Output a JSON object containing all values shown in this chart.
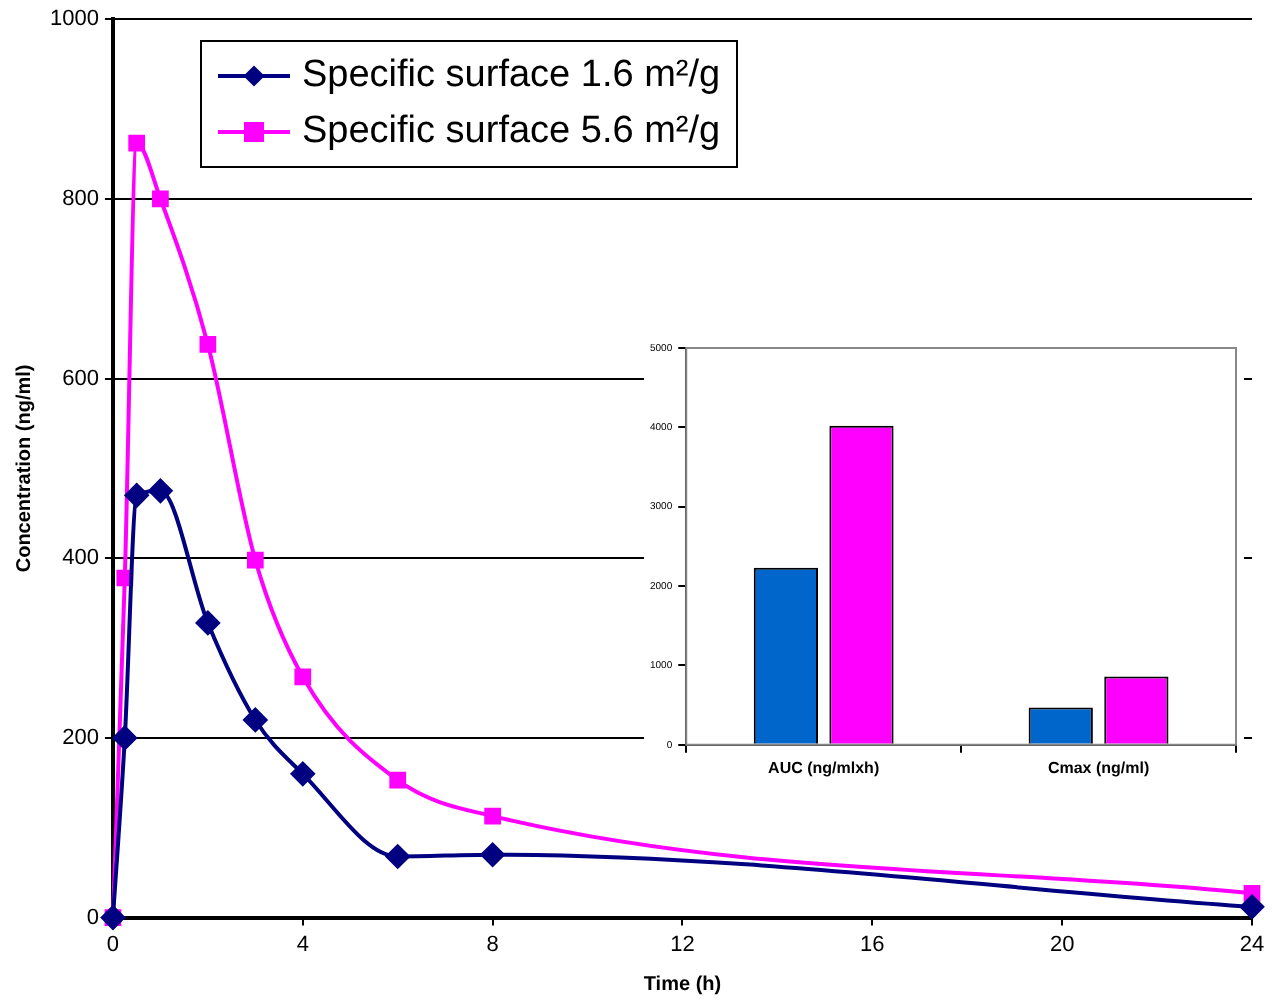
{
  "chart_data": [
    {
      "type": "line",
      "xlabel": "Time (h)",
      "ylabel": "Concentration (ng/ml)",
      "x": [
        0,
        0.25,
        0.5,
        1,
        2,
        3,
        4,
        6,
        8,
        24
      ],
      "xlim": [
        0,
        24
      ],
      "xticks": [
        0,
        4,
        8,
        12,
        16,
        20,
        24
      ],
      "ylim": [
        0,
        1000
      ],
      "yticks": [
        0,
        200,
        400,
        600,
        800,
        1000
      ],
      "grid": "y",
      "legend": "top",
      "series": [
        {
          "name": "Specific surface 1.6 m²/g",
          "color": "#000080",
          "marker": "diamond",
          "values": [
            0,
            200,
            470,
            475,
            328,
            220,
            160,
            68,
            70,
            12
          ]
        },
        {
          "name": "Specific surface 5.6 m²/g",
          "color": "#ff00ff",
          "marker": "square",
          "values": [
            0,
            378,
            862,
            800,
            638,
            398,
            268,
            153,
            113,
            27
          ]
        }
      ]
    },
    {
      "type": "bar",
      "categories": [
        "AUC (ng/mlxh)",
        "Cmax (ng/ml)"
      ],
      "ylim": [
        0,
        5000
      ],
      "yticks": [
        0,
        1000,
        2000,
        3000,
        4000,
        5000
      ],
      "grid": false,
      "legend": false,
      "series": [
        {
          "color": "#0066cc",
          "values": [
            2230,
            470
          ]
        },
        {
          "color": "#ff00ff",
          "values": [
            4020,
            860
          ]
        }
      ]
    }
  ]
}
